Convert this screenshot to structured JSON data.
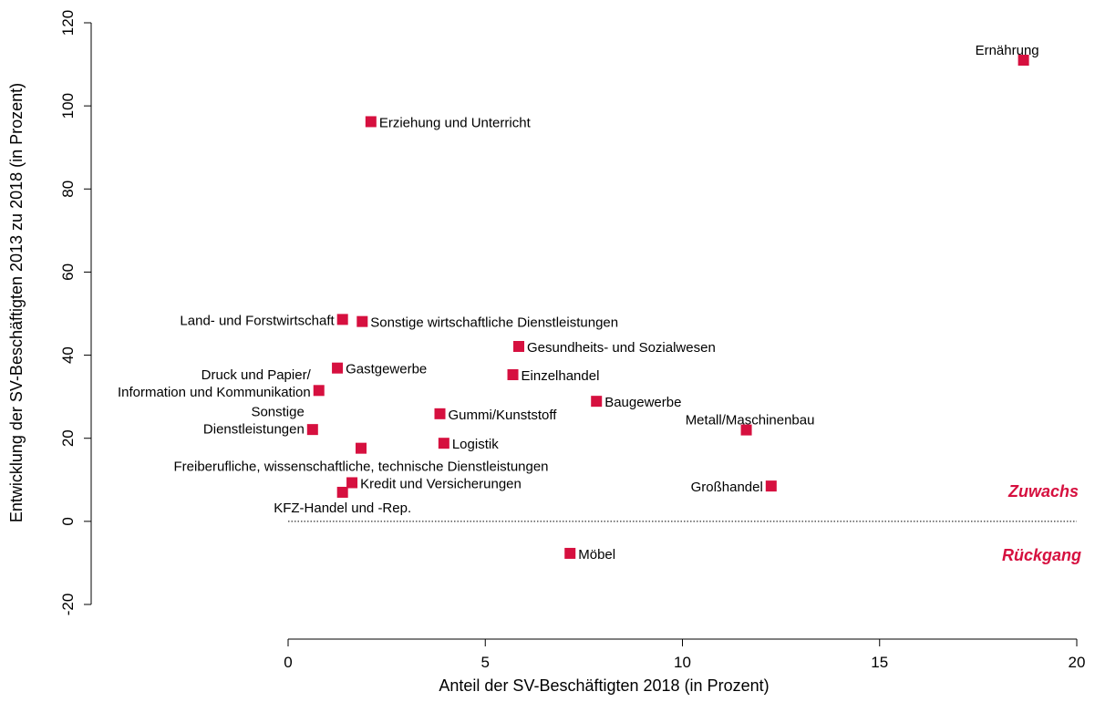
{
  "chart_data": {
    "type": "scatter",
    "title": "",
    "xlabel": "Anteil der SV-Beschäftigten 2018 (in Prozent)",
    "ylabel": "Entwicklung der SV-Beschäftigten 2013 zu 2018 (in Prozent)",
    "xlim": [
      0,
      20
    ],
    "ylim": [
      -20,
      120
    ],
    "x_ticks": [
      "0",
      "5",
      "10",
      "15",
      "20"
    ],
    "y_ticks": [
      "-20",
      "0",
      "20",
      "40",
      "60",
      "80",
      "100",
      "120"
    ],
    "grid": false,
    "reference_line": {
      "y": 0,
      "style": "dotted"
    },
    "marker_color": "#d6103f",
    "zone_color": "#d6103f",
    "zones": {
      "growth": "Zuwachs",
      "decline": "Rückgang"
    },
    "points": [
      {
        "label": "Ernährung",
        "x": 18.65,
        "y": 111.0
      },
      {
        "label": "Erziehung und Unterricht",
        "x": 2.1,
        "y": 96.2
      },
      {
        "label": "Land- und Forstwirtschaft",
        "x": 1.38,
        "y": 48.6
      },
      {
        "label": "Sonstige wirtschaftliche Dienstleistungen",
        "x": 1.88,
        "y": 48.1
      },
      {
        "label": "Gesundheits- und Sozialwesen",
        "x": 5.85,
        "y": 42.1
      },
      {
        "label": "Gastgewerbe",
        "x": 1.25,
        "y": 36.9
      },
      {
        "label": "Einzelhandel",
        "x": 5.7,
        "y": 35.3
      },
      {
        "label": "Druck und Papier/\nInformation und Kommunikation",
        "x": 0.78,
        "y": 31.5
      },
      {
        "label": "Baugewerbe",
        "x": 7.82,
        "y": 28.9
      },
      {
        "label": "Gummi/Kunststoff",
        "x": 3.85,
        "y": 25.9
      },
      {
        "label": "Sonstige\nDienstleistungen",
        "x": 0.62,
        "y": 22.1
      },
      {
        "label": "Metall/Maschinenbau",
        "x": 11.62,
        "y": 22.0
      },
      {
        "label": "Logistik",
        "x": 3.95,
        "y": 18.8
      },
      {
        "label": "Freiberufliche, wissenschaftliche, technische Dienstleistungen",
        "x": 1.85,
        "y": 17.6
      },
      {
        "label": "Kredit und Versicherungen",
        "x": 1.62,
        "y": 9.3
      },
      {
        "label": "Großhandel",
        "x": 12.25,
        "y": 8.5
      },
      {
        "label": "KFZ-Handel und -Rep.",
        "x": 1.38,
        "y": 7.0
      },
      {
        "label": "Möbel",
        "x": 7.15,
        "y": -7.7
      }
    ]
  }
}
